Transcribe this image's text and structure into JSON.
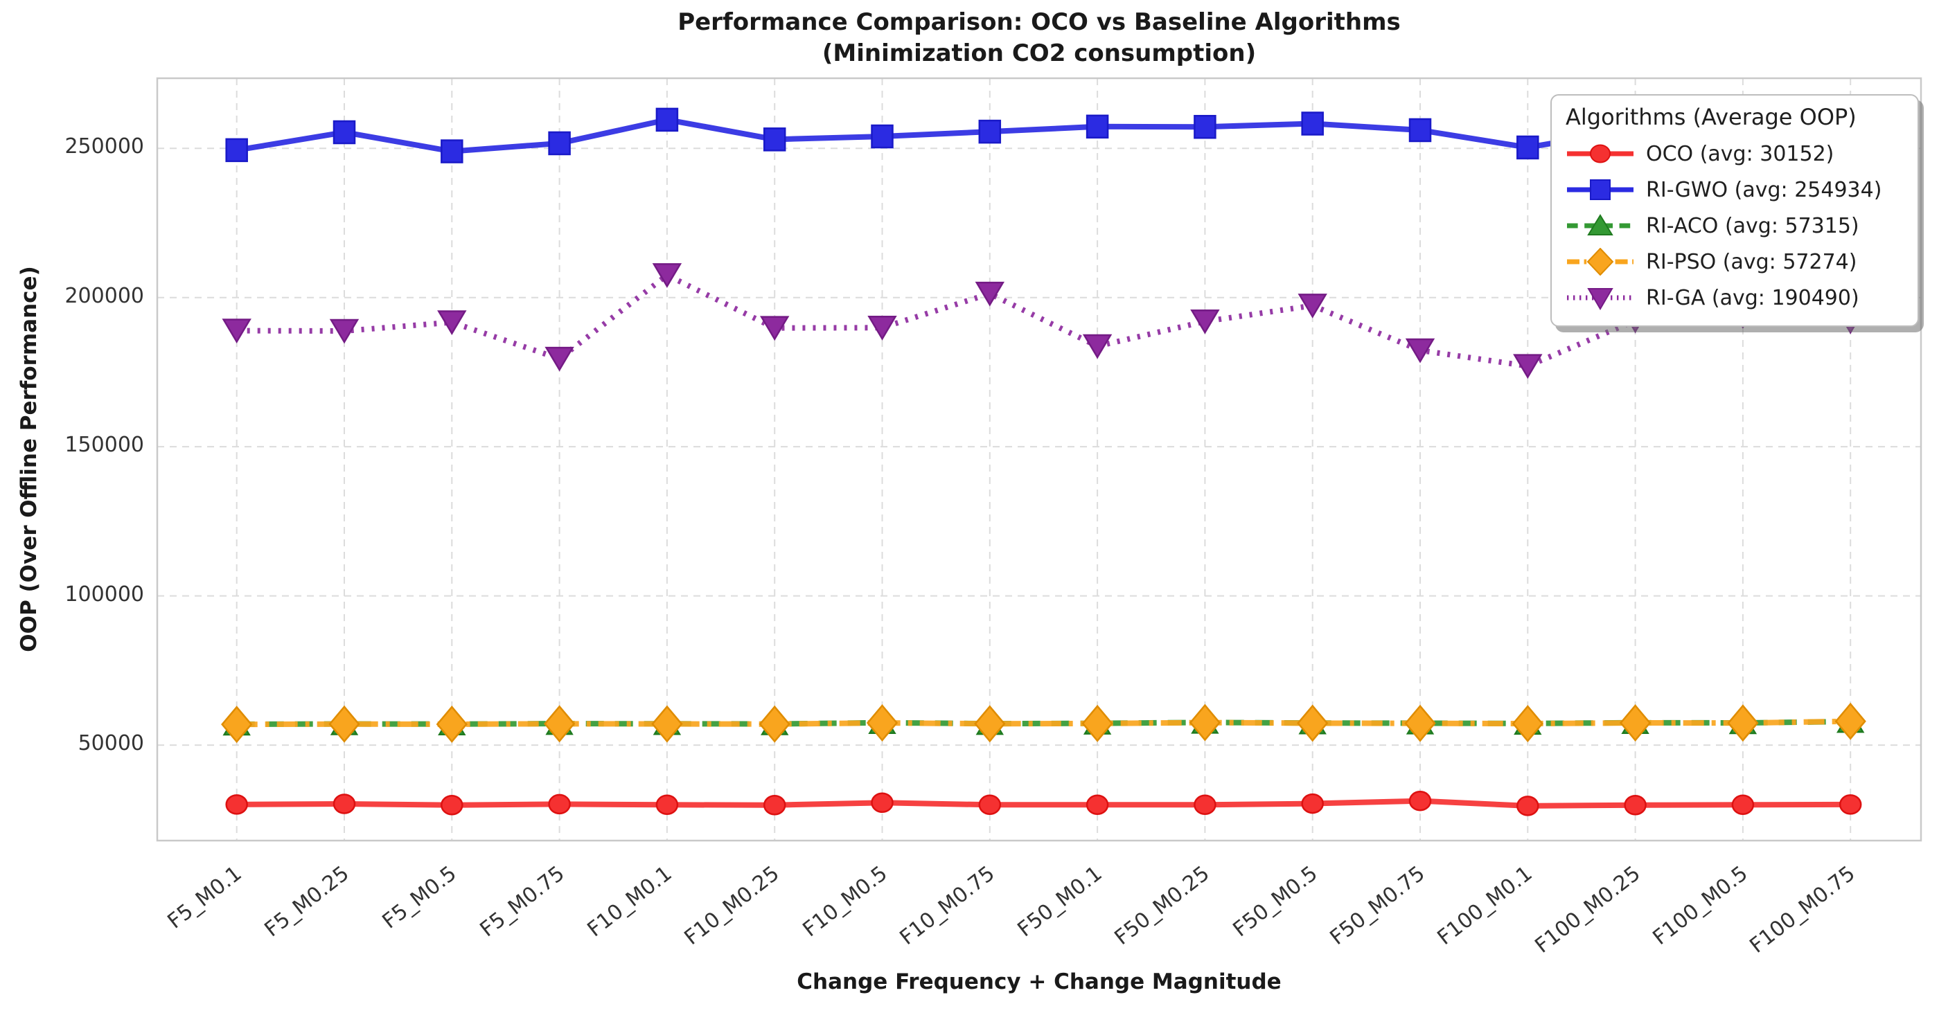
{
  "title_line1": "Performance Comparison: OCO vs Baseline Algorithms",
  "title_line2": "(Minimization CO2 consumption)",
  "axes": {
    "x_label": "Change Frequency + Change Magnitude",
    "y_label": "OOP (Over Offline Performance)",
    "y_ticks": [
      50000,
      100000,
      150000,
      200000,
      250000
    ]
  },
  "legend": {
    "title": "Algorithms (Average OOP)",
    "entries": [
      {
        "label": "OCO (avg: 30152)"
      },
      {
        "label": "RI-GWO (avg: 254934)"
      },
      {
        "label": "RI-ACO (avg: 57315)"
      },
      {
        "label": "RI-PSO (avg: 57274)"
      },
      {
        "label": "RI-GA (avg: 190490)"
      }
    ]
  },
  "chart_data": {
    "type": "line",
    "title": "Performance Comparison: OCO vs Baseline Algorithms (Minimization CO2 consumption)",
    "xlabel": "Change Frequency + Change Magnitude",
    "ylabel": "OOP (Over Offline Performance)",
    "ylim": [
      18000,
      273500
    ],
    "grid": true,
    "legend_position": "upper right",
    "categories": [
      "F5_M0.1",
      "F5_M0.25",
      "F5_M0.5",
      "F5_M0.75",
      "F10_M0.1",
      "F10_M0.25",
      "F10_M0.5",
      "F10_M0.75",
      "F50_M0.1",
      "F50_M0.25",
      "F50_M0.5",
      "F50_M0.75",
      "F100_M0.1",
      "F100_M0.25",
      "F100_M0.5",
      "F100_M0.75"
    ],
    "series": [
      {
        "name": "OCO",
        "avg": 30152,
        "color": "#f53131",
        "edge": "#dd1111",
        "linestyle": "solid",
        "marker": "circle",
        "values": [
          30100,
          30300,
          29900,
          30200,
          30000,
          29900,
          30700,
          30000,
          30000,
          30000,
          30400,
          31300,
          29632,
          29900,
          30000,
          30100
        ]
      },
      {
        "name": "RI-GWO",
        "avg": 254934,
        "color": "#2b2be2",
        "edge": "#1a1ac8",
        "linestyle": "solid",
        "marker": "square",
        "values": [
          249400,
          255400,
          249000,
          251700,
          259600,
          253000,
          254000,
          255600,
          257300,
          257200,
          258300,
          256100,
          250300,
          256500,
          257544,
          258000
        ]
      },
      {
        "name": "RI-ACO",
        "avg": 57315,
        "color": "#339933",
        "edge": "#1f7a1f",
        "linestyle": "dashed",
        "marker": "triangle-up",
        "values": [
          57000,
          57100,
          57050,
          57200,
          57150,
          57100,
          57500,
          57200,
          57300,
          57600,
          57400,
          57350,
          57250,
          57500,
          57450,
          57890
        ]
      },
      {
        "name": "RI-PSO",
        "avg": 57274,
        "color": "#f9a51e",
        "edge": "#df8c00",
        "linestyle": "dashdot",
        "marker": "diamond",
        "values": [
          56950,
          57050,
          57000,
          57150,
          57100,
          57050,
          57450,
          57150,
          57250,
          57550,
          57350,
          57300,
          57200,
          57450,
          57400,
          57984
        ]
      },
      {
        "name": "RI-GA",
        "avg": 190490,
        "color": "#8d2a9e",
        "edge": "#741b85",
        "linestyle": "dotted",
        "marker": "triangle-down",
        "values": [
          188900,
          188800,
          191700,
          179500,
          207500,
          189800,
          189900,
          201300,
          183700,
          192000,
          197300,
          182300,
          177040,
          192300,
          193800,
          192000
        ]
      }
    ]
  }
}
